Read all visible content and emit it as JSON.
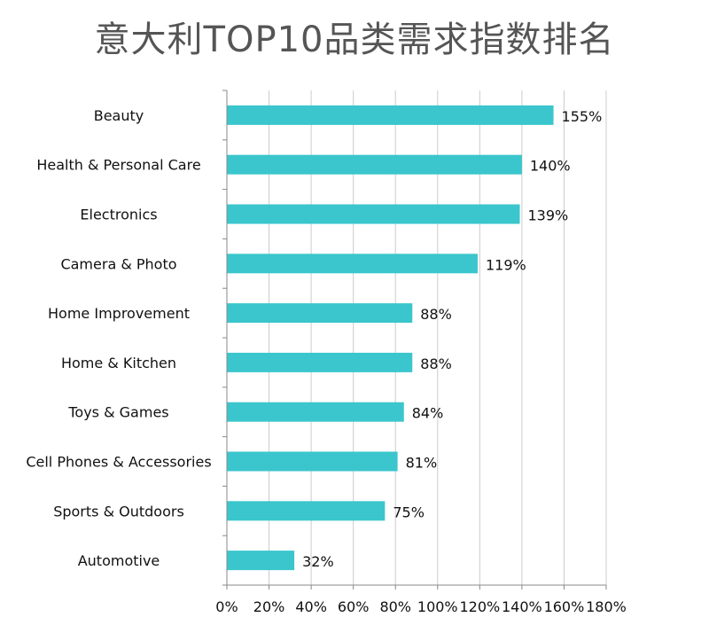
{
  "chart_data": {
    "type": "bar",
    "orientation": "horizontal",
    "title": "意大利TOP10品类需求指数排名",
    "categories": [
      "Beauty",
      "Health & Personal Care",
      "Electronics",
      "Camera & Photo",
      "Home Improvement",
      "Home & Kitchen",
      "Toys & Games",
      "Cell Phones & Accessories",
      "Sports & Outdoors",
      "Automotive"
    ],
    "values": [
      155,
      140,
      139,
      119,
      88,
      88,
      84,
      81,
      75,
      32
    ],
    "value_labels": [
      "155%",
      "140%",
      "139%",
      "119%",
      "88%",
      "88%",
      "84%",
      "81%",
      "75%",
      "32%"
    ],
    "x_ticks": [
      "0%",
      "20%",
      "40%",
      "60%",
      "80%",
      "100%",
      "120%",
      "140%",
      "160%",
      "180%"
    ],
    "xlim": [
      0,
      180
    ],
    "unit": "%",
    "grid": true,
    "bar_color": "#3ac6cc",
    "grid_color": "#cccccc",
    "axis_color": "#888888"
  }
}
